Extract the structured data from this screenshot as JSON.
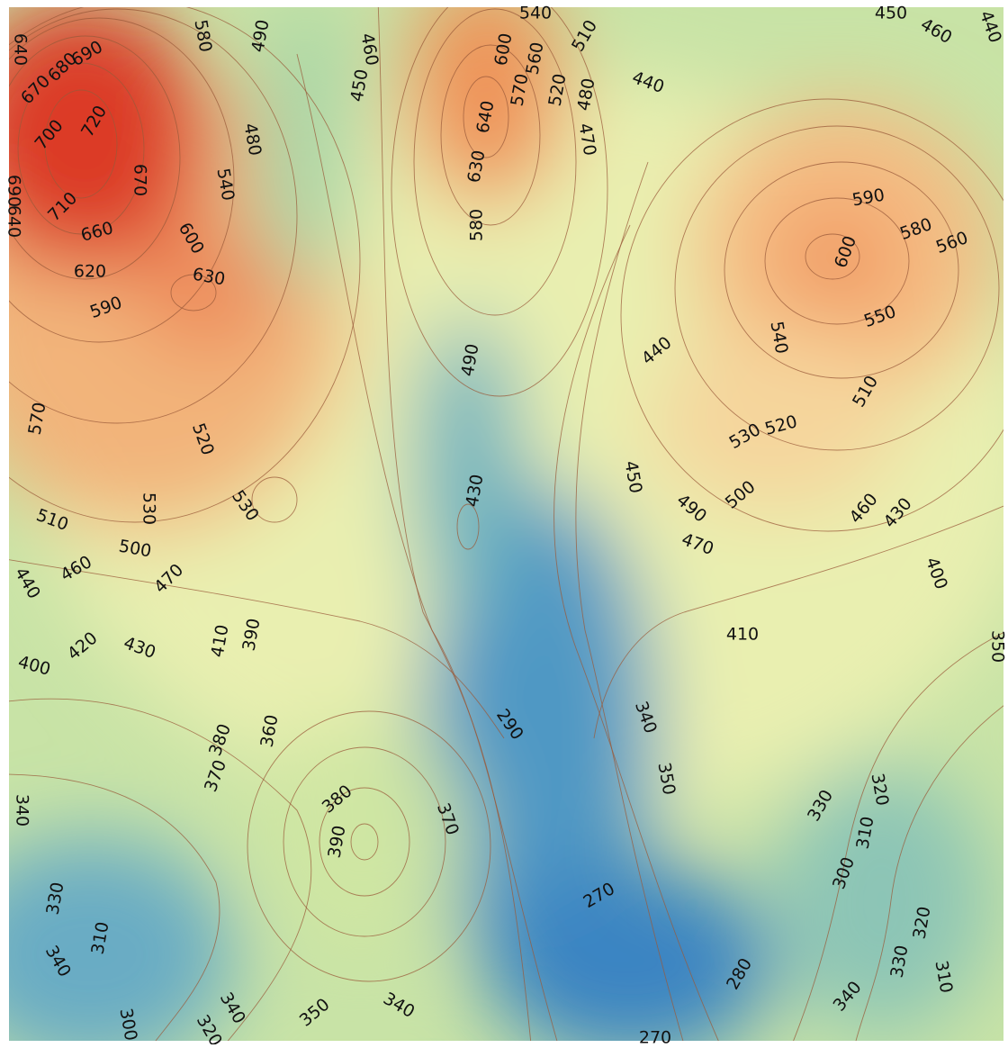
{
  "contour_labels": [
    640,
    690,
    680,
    670,
    700,
    720,
    690,
    640,
    710,
    670,
    580,
    490,
    460,
    450,
    540,
    600,
    560,
    570,
    510,
    520,
    480,
    470,
    440,
    450,
    460,
    440,
    480,
    640,
    630,
    540,
    660,
    600,
    580,
    620,
    630,
    590,
    590,
    600,
    580,
    560,
    440,
    540,
    550,
    490,
    570,
    510,
    520,
    530,
    520,
    430,
    450,
    530,
    530,
    490,
    500,
    510,
    460,
    430,
    500,
    470,
    460,
    470,
    440,
    400,
    410,
    390,
    420,
    430,
    410,
    400,
    350,
    290,
    340,
    380,
    360,
    370,
    350,
    320,
    330,
    340,
    380,
    370,
    390,
    310,
    300,
    270,
    330,
    320,
    310,
    340,
    330,
    280,
    310,
    340,
    340,
    350,
    340,
    300,
    320,
    270
  ]
}
